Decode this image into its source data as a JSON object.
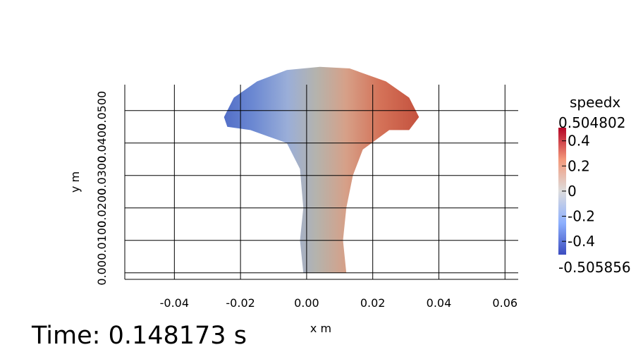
{
  "time_text": "Time: 0.148173 s",
  "chart_data": {
    "type": "heatmap",
    "xlabel": "x m",
    "ylabel": "y m",
    "xlim": [
      -0.055,
      0.064
    ],
    "ylim": [
      -0.002,
      0.058
    ],
    "x_ticks": [
      {
        "value": -0.04,
        "label": "-0.04"
      },
      {
        "value": -0.02,
        "label": "-0.02"
      },
      {
        "value": 0.0,
        "label": "0.00"
      },
      {
        "value": 0.02,
        "label": "0.02"
      },
      {
        "value": 0.04,
        "label": "0.04"
      },
      {
        "value": 0.06,
        "label": "0.06"
      }
    ],
    "y_ticks": [
      {
        "value": 0.0,
        "label": "0.00"
      },
      {
        "value": 0.01,
        "label": "0.0100"
      },
      {
        "value": 0.02,
        "label": "0.0200"
      },
      {
        "value": 0.03,
        "label": "0.0300"
      },
      {
        "value": 0.04,
        "label": "0.0400"
      },
      {
        "value": 0.05,
        "label": "0.0500"
      }
    ],
    "grid": true,
    "field": "speedx",
    "colorbar": {
      "title": "speedx",
      "max_label": "0.504802",
      "min_label": "-0.505856",
      "range": [
        -0.505856,
        0.504802
      ],
      "ticks": [
        {
          "value": 0.4,
          "label": "0.4"
        },
        {
          "value": 0.2,
          "label": "0.2"
        },
        {
          "value": 0.0,
          "label": "0"
        },
        {
          "value": -0.2,
          "label": "-0.2"
        },
        {
          "value": -0.4,
          "label": "-0.4"
        }
      ],
      "colormap": [
        "#3b4cc0",
        "#8db0fe",
        "#dddddd",
        "#f4987a",
        "#b40426"
      ]
    },
    "shape_outline": [
      [
        -0.001,
        0.0
      ],
      [
        0.012,
        0.0
      ],
      [
        0.011,
        0.01
      ],
      [
        0.012,
        0.02
      ],
      [
        0.014,
        0.03
      ],
      [
        0.017,
        0.038
      ],
      [
        0.025,
        0.044
      ],
      [
        0.031,
        0.044
      ],
      [
        0.034,
        0.048
      ],
      [
        0.031,
        0.054
      ],
      [
        0.024,
        0.059
      ],
      [
        0.013,
        0.063
      ],
      [
        0.004,
        0.0635
      ],
      [
        -0.006,
        0.0625
      ],
      [
        -0.015,
        0.059
      ],
      [
        -0.022,
        0.054
      ],
      [
        -0.025,
        0.048
      ],
      [
        -0.024,
        0.045
      ],
      [
        -0.017,
        0.044
      ],
      [
        -0.006,
        0.04
      ],
      [
        -0.002,
        0.032
      ],
      [
        -0.001,
        0.02
      ],
      [
        -0.002,
        0.01
      ]
    ]
  }
}
